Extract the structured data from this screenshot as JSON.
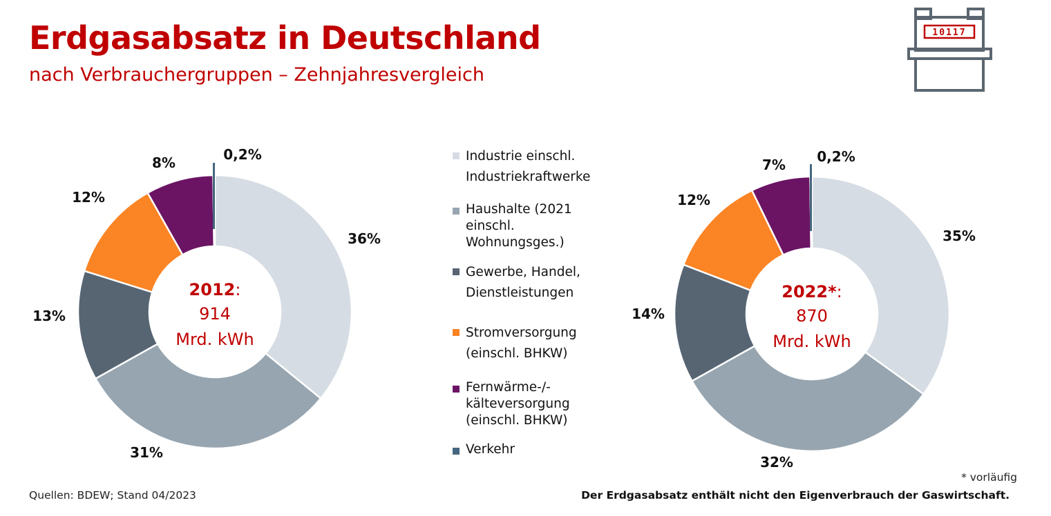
{
  "header": {
    "title": "Erdgasabsatz in Deutschland",
    "subtitle": "nach Verbrauchergruppen – Zehnjahresvergleich"
  },
  "icon": {
    "name": "gas-meter-icon",
    "meter_reading": "10117"
  },
  "colors": {
    "industrie": "#d6dce3",
    "haushalte": "#97a5b0",
    "gewerbe": "#576573",
    "strom": "#fb8424",
    "fernwaerme": "#6b1464",
    "verkehr": "#44677f",
    "accent": "#c00000"
  },
  "chart_data": [
    {
      "type": "pie",
      "variant": "donut",
      "center": {
        "year": "2012",
        "suffix": ":",
        "value": "914",
        "unit": "Mrd. kWh"
      },
      "categories": [
        "Industrie einschl. Industriekraftwerke",
        "Haushalte (2021 einschl. Wohnungsges.)",
        "Gewerbe, Handel, Dienstleistungen",
        "Stromversorgung (einschl. BHKW)",
        "Fernwärme-/-kälteversorgung (einschl. BHKW)",
        "Verkehr"
      ],
      "values": [
        36,
        31,
        13,
        12,
        8,
        0.2
      ],
      "labels": [
        "36%",
        "31%",
        "13%",
        "12%",
        "8%",
        "0,2%"
      ]
    },
    {
      "type": "pie",
      "variant": "donut",
      "center": {
        "year": "2022*",
        "suffix": ":",
        "value": "870",
        "unit": "Mrd. kWh"
      },
      "categories": [
        "Industrie einschl. Industriekraftwerke",
        "Haushalte (2021 einschl. Wohnungsges.)",
        "Gewerbe, Handel, Dienstleistungen",
        "Stromversorgung (einschl. BHKW)",
        "Fernwärme-/-kälteversorgung (einschl. BHKW)",
        "Verkehr"
      ],
      "values": [
        35,
        32,
        14,
        12,
        7,
        0.2
      ],
      "labels": [
        "35%",
        "32%",
        "14%",
        "12%",
        "7%",
        "0,2%"
      ]
    }
  ],
  "legend": [
    {
      "key": "industrie",
      "label": "Industrie einschl.\nIndustriekraftwerke"
    },
    {
      "key": "haushalte",
      "label": "Haushalte (2021\neinschl.\nWohnungsges.)"
    },
    {
      "key": "gewerbe",
      "label": "Gewerbe, Handel,\nDienstleistungen"
    },
    {
      "key": "strom",
      "label": "Stromversorgung\n(einschl. BHKW)"
    },
    {
      "key": "fernwaerme",
      "label": "Fernwärme-/-\nkälteversorgung\n(einschl. BHKW)"
    },
    {
      "key": "verkehr",
      "label": "Verkehr"
    }
  ],
  "footer": {
    "source": "Quellen: BDEW; Stand 04/2023",
    "footnote": "* vorläufig",
    "note": "Der Erdgasabsatz enthält nicht den Eigenverbrauch der Gaswirtschaft."
  }
}
